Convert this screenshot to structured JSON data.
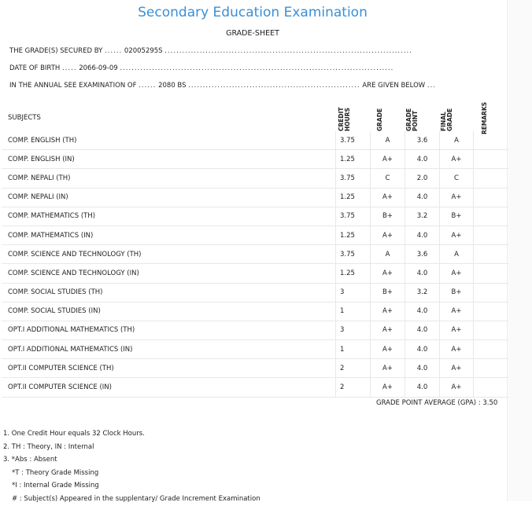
{
  "header": {
    "title": "Secondary Education Examination",
    "subtitle": "GRADE-SHEET"
  },
  "info": {
    "grade_secured_label": "THE GRADE(S) SECURED BY",
    "grade_secured_value": "02005295S",
    "dob_label": "DATE OF BIRTH",
    "dob_value": "2066-09-09",
    "exam_label": "IN THE ANNUAL SEE EXAMINATION OF",
    "exam_value": "2080 BS",
    "given_below": "ARE GIVEN BELOW"
  },
  "table": {
    "headers": {
      "subjects": "SUBJECTS",
      "credit_hours": "CREDIT HOURS",
      "grade": "GRADE",
      "grade_point": "GRADE POINT",
      "final_grade": "FINAL GRADE",
      "remarks": "REMARKS"
    },
    "rows": [
      {
        "subject": "COMP. ENGLISH (TH)",
        "credit": "3.75",
        "grade": "A",
        "point": "3.6",
        "final": "A",
        "remarks": ""
      },
      {
        "subject": "COMP. ENGLISH (IN)",
        "credit": "1.25",
        "grade": "A+",
        "point": "4.0",
        "final": "A+",
        "remarks": ""
      },
      {
        "subject": "COMP. NEPALI (TH)",
        "credit": "3.75",
        "grade": "C",
        "point": "2.0",
        "final": "C",
        "remarks": ""
      },
      {
        "subject": "COMP. NEPALI (IN)",
        "credit": "1.25",
        "grade": "A+",
        "point": "4.0",
        "final": "A+",
        "remarks": ""
      },
      {
        "subject": "COMP. MATHEMATICS (TH)",
        "credit": "3.75",
        "grade": "B+",
        "point": "3.2",
        "final": "B+",
        "remarks": ""
      },
      {
        "subject": "COMP. MATHEMATICS (IN)",
        "credit": "1.25",
        "grade": "A+",
        "point": "4.0",
        "final": "A+",
        "remarks": ""
      },
      {
        "subject": "COMP. SCIENCE AND TECHNOLOGY (TH)",
        "credit": "3.75",
        "grade": "A",
        "point": "3.6",
        "final": "A",
        "remarks": ""
      },
      {
        "subject": "COMP. SCIENCE AND TECHNOLOGY (IN)",
        "credit": "1.25",
        "grade": "A+",
        "point": "4.0",
        "final": "A+",
        "remarks": ""
      },
      {
        "subject": "COMP. SOCIAL STUDIES (TH)",
        "credit": "3",
        "grade": "B+",
        "point": "3.2",
        "final": "B+",
        "remarks": ""
      },
      {
        "subject": "COMP. SOCIAL STUDIES (IN)",
        "credit": "1",
        "grade": "A+",
        "point": "4.0",
        "final": "A+",
        "remarks": ""
      },
      {
        "subject": "OPT.I ADDITIONAL MATHEMATICS (TH)",
        "credit": "3",
        "grade": "A+",
        "point": "4.0",
        "final": "A+",
        "remarks": ""
      },
      {
        "subject": "OPT.I ADDITIONAL MATHEMATICS (IN)",
        "credit": "1",
        "grade": "A+",
        "point": "4.0",
        "final": "A+",
        "remarks": ""
      },
      {
        "subject": "OPT.II COMPUTER SCIENCE (TH)",
        "credit": "2",
        "grade": "A+",
        "point": "4.0",
        "final": "A+",
        "remarks": ""
      },
      {
        "subject": "OPT.II COMPUTER SCIENCE (IN)",
        "credit": "2",
        "grade": "A+",
        "point": "4.0",
        "final": "A+",
        "remarks": ""
      }
    ]
  },
  "gpa": {
    "label": "GRADE POINT AVERAGE (GPA) :",
    "value": "3.50"
  },
  "notes": [
    "1. One Credit Hour equals 32 Clock Hours.",
    "2. TH : Theory, IN : Internal",
    "3. *Abs : Absent",
    "*T : Theory Grade Missing",
    "*I : Internal Grade Missing",
    "# : Subject(s) Appeared in the supplentary/ Grade Increment Examination"
  ]
}
